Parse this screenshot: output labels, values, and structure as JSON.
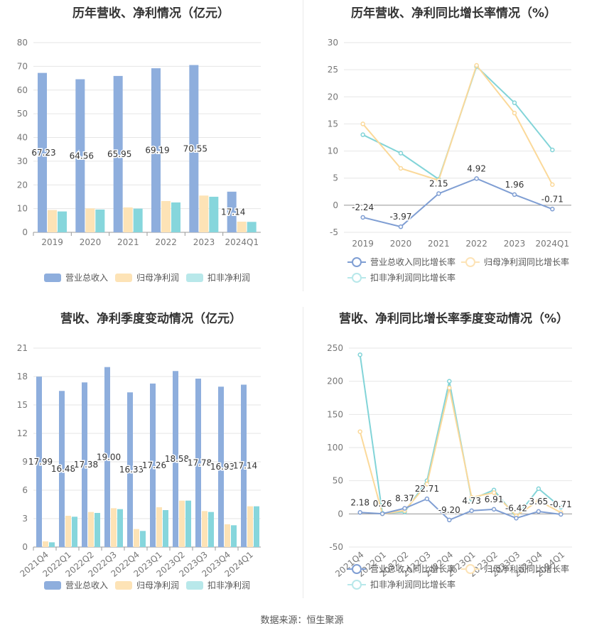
{
  "source_text": "数据来源：恒生聚源",
  "colors": {
    "revenue": "#8eaedd",
    "net_profit": "#fde3b6",
    "deducted": "#86d6dc",
    "revenue_line": "#7f9ed3",
    "net_profit_line": "#fbd99a",
    "deducted_line": "#82d4d8"
  },
  "chart_data": [
    {
      "id": "annual_values",
      "type": "bar",
      "title": "历年营收、净利情况（亿元）",
      "categories": [
        "2019",
        "2020",
        "2021",
        "2022",
        "2023",
        "2024Q1"
      ],
      "ylim": [
        0,
        80
      ],
      "yticks": [
        0,
        10,
        20,
        30,
        40,
        50,
        60,
        70,
        80
      ],
      "series": [
        {
          "name": "营业总收入",
          "values": [
            67.23,
            64.56,
            65.95,
            69.19,
            70.55,
            17.14
          ],
          "labels": [
            "67.23",
            "64.56",
            "65.95",
            "69.19",
            "70.55",
            "17.14"
          ]
        },
        {
          "name": "归母净利润",
          "values": [
            9.4,
            10.1,
            10.5,
            13.2,
            15.5,
            4.5
          ]
        },
        {
          "name": "扣非净利润",
          "values": [
            8.8,
            9.6,
            10.0,
            12.6,
            15.0,
            4.4
          ]
        }
      ],
      "legend_position": "bottom",
      "grid": true
    },
    {
      "id": "annual_growth",
      "type": "line",
      "title": "历年营收、净利同比增长率情况（%）",
      "categories": [
        "2019",
        "2020",
        "2021",
        "2022",
        "2023",
        "2024Q1"
      ],
      "ylim": [
        -5,
        30
      ],
      "yticks": [
        -5,
        0,
        5,
        10,
        15,
        20,
        25,
        30
      ],
      "series": [
        {
          "name": "营业总收入同比增长率",
          "values": [
            -2.24,
            -3.97,
            2.15,
            4.92,
            1.96,
            -0.71
          ],
          "labels": [
            "-2.24",
            "-3.97",
            "2.15",
            "4.92",
            "1.96",
            "-0.71"
          ]
        },
        {
          "name": "归母净利润同比增长率",
          "values": [
            15.0,
            6.8,
            4.6,
            25.8,
            17.0,
            3.8
          ]
        },
        {
          "name": "扣非净利润同比增长率",
          "values": [
            13.0,
            9.6,
            4.8,
            25.6,
            18.9,
            10.2
          ]
        }
      ],
      "legend_position": "bottom",
      "grid": true
    },
    {
      "id": "quarterly_values",
      "type": "bar",
      "title": "营收、净利季度变动情况（亿元）",
      "categories": [
        "2021Q4",
        "2022Q1",
        "2022Q2",
        "2022Q3",
        "2022Q4",
        "2023Q1",
        "2023Q2",
        "2023Q3",
        "2023Q4",
        "2024Q1"
      ],
      "ylim": [
        0,
        21
      ],
      "yticks": [
        0,
        3,
        6,
        9,
        12,
        15,
        18,
        21
      ],
      "series": [
        {
          "name": "营业总收入",
          "values": [
            17.99,
            16.48,
            17.38,
            19.0,
            16.33,
            17.26,
            18.58,
            17.78,
            16.93,
            17.14
          ],
          "labels": [
            "17.99",
            "16.48",
            "17.38",
            "19.00",
            "16.33",
            "17.26",
            "18.58",
            "17.78",
            "16.93",
            "17.14"
          ]
        },
        {
          "name": "归母净利润",
          "values": [
            0.6,
            3.3,
            3.7,
            4.1,
            1.9,
            4.2,
            4.9,
            3.8,
            2.4,
            4.3
          ]
        },
        {
          "name": "扣非净利润",
          "values": [
            0.5,
            3.2,
            3.6,
            4.0,
            1.7,
            3.9,
            4.9,
            3.7,
            2.3,
            4.3
          ]
        }
      ],
      "legend_position": "bottom",
      "grid": true
    },
    {
      "id": "quarterly_growth",
      "type": "line",
      "title": "营收、净利同比增长率季度变动情况（%）",
      "categories": [
        "2021Q4",
        "2022Q1",
        "2022Q2",
        "2022Q3",
        "2022Q4",
        "2023Q1",
        "2023Q2",
        "2023Q3",
        "2023Q4",
        "2024Q1"
      ],
      "ylim": [
        -50,
        250
      ],
      "yticks": [
        -50,
        0,
        50,
        100,
        150,
        200,
        250
      ],
      "series": [
        {
          "name": "营业总收入同比增长率",
          "values": [
            2.18,
            0.26,
            8.37,
            22.71,
            -9.2,
            4.73,
            6.91,
            -6.42,
            3.65,
            -0.71
          ],
          "labels": [
            "2.18",
            "0.26",
            "8.37",
            "22.71",
            "-9.20",
            "4.73",
            "6.91",
            "-6.42",
            "3.65",
            "-0.71"
          ]
        },
        {
          "name": "归母净利润同比增长率",
          "values": [
            124,
            0,
            5,
            45,
            190,
            25,
            32,
            -3,
            20,
            2
          ]
        },
        {
          "name": "扣非净利润同比增长率",
          "values": [
            240,
            1,
            3,
            50,
            200,
            22,
            36,
            -5,
            38,
            10
          ]
        }
      ],
      "legend_position": "bottom",
      "grid": true
    }
  ]
}
